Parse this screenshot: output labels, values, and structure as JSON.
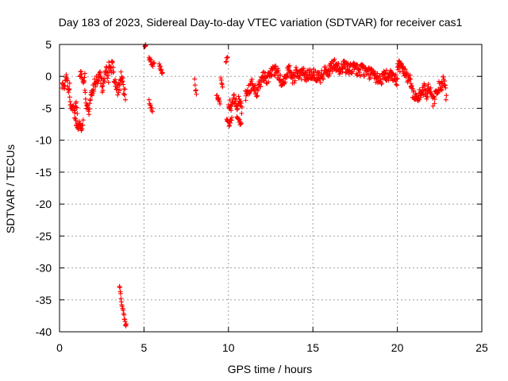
{
  "chart_data": {
    "type": "scatter",
    "title": "Day 183 of 2023, Sidereal Day-to-day VTEC variation (SDTVAR) for receiver cas1",
    "xlabel": "GPS time / hours",
    "ylabel": "SDTVAR / TECUs",
    "xlim": [
      0,
      25
    ],
    "ylim": [
      -40,
      5
    ],
    "xticks": [
      0,
      5,
      10,
      15,
      20,
      25
    ],
    "yticks": [
      5,
      0,
      -5,
      -10,
      -15,
      -20,
      -25,
      -30,
      -35,
      -40
    ],
    "grid": true,
    "marker": "+",
    "color": "#ff0000",
    "segments": [
      {
        "x0": 0.15,
        "x1": 0.6,
        "y": [
          -1.5,
          -1.0,
          -2.0,
          -0.5,
          0.0,
          -1.0,
          -2.5,
          -1.2
        ]
      },
      {
        "x0": 0.6,
        "x1": 1.05,
        "y": [
          -3.5,
          -4.8,
          -5.2,
          -4.5,
          -6.0,
          -4.0,
          -5.5
        ]
      },
      {
        "x0": 0.9,
        "x1": 1.4,
        "y": [
          -6.5,
          -7.5,
          -8.0,
          -7.2,
          -8.3,
          -7.0
        ]
      },
      {
        "x0": 1.2,
        "x1": 1.5,
        "y": [
          0.2,
          0.6,
          -0.5,
          -1.0,
          0.3
        ]
      },
      {
        "x0": 1.5,
        "x1": 1.9,
        "y": [
          -2.0,
          -5.0,
          -4.5,
          -6.0,
          -3.5,
          -2.5
        ]
      },
      {
        "x0": 1.9,
        "x1": 2.9,
        "y": [
          -2.5,
          -1.5,
          -0.5,
          -1.0,
          0.3,
          -1.8,
          -0.5,
          0.8,
          -0.2
        ]
      },
      {
        "x0": 2.9,
        "x1": 3.9,
        "y": [
          1.5,
          1.0,
          1.8,
          -0.5,
          -1.0,
          -2.5,
          -1.5,
          0.5,
          -2.0,
          -3.0
        ]
      },
      {
        "x0": 3.55,
        "x1": 3.95,
        "y": [
          -33.0,
          -34.0,
          -35.5,
          -36.5,
          -37.5,
          -38.5,
          -39.0
        ]
      },
      {
        "x0": 5.05,
        "x1": 5.1,
        "y": [
          4.8
        ]
      },
      {
        "x0": 5.3,
        "x1": 5.6,
        "y": [
          3.0,
          2.5,
          1.5,
          2.0
        ]
      },
      {
        "x0": 5.3,
        "x1": 5.5,
        "y": [
          -4.0,
          -4.5,
          -5.0,
          -5.5
        ]
      },
      {
        "x0": 5.9,
        "x1": 6.1,
        "y": [
          2.0,
          1.0,
          0.5
        ]
      },
      {
        "x0": 8.0,
        "x1": 8.1,
        "y": [
          -0.5,
          -2.0,
          -2.5
        ]
      },
      {
        "x0": 9.3,
        "x1": 9.5,
        "y": [
          -3.0,
          -3.5,
          -4.0
        ]
      },
      {
        "x0": 9.55,
        "x1": 9.65,
        "y": [
          0.0,
          -1.5
        ]
      },
      {
        "x0": 9.85,
        "x1": 9.95,
        "y": [
          2.5,
          3.2
        ]
      },
      {
        "x0": 9.9,
        "x1": 10.2,
        "y": [
          -7.0,
          -7.5,
          -6.5
        ]
      },
      {
        "x0": 10.0,
        "x1": 10.8,
        "y": [
          -4.0,
          -5.0,
          -3.5,
          -4.5,
          -3.8,
          -5.5
        ]
      },
      {
        "x0": 10.5,
        "x1": 10.75,
        "y": [
          -6.5,
          -7.5
        ]
      },
      {
        "x0": 11.0,
        "x1": 12.5,
        "y": [
          -3.0,
          -2.0,
          -1.0,
          -2.5,
          -1.5,
          0.0,
          -0.5,
          0.5
        ]
      },
      {
        "x0": 12.5,
        "x1": 14.5,
        "y": [
          0.5,
          1.0,
          0.5,
          -1.0,
          0.0,
          1.2,
          -0.5,
          0.8,
          0.2,
          0.5
        ]
      },
      {
        "x0": 14.5,
        "x1": 16.0,
        "y": [
          0.0,
          0.5,
          0.3,
          -0.3,
          0.8,
          1.0
        ]
      },
      {
        "x0": 16.0,
        "x1": 18.0,
        "y": [
          1.5,
          1.8,
          1.2,
          1.6,
          1.0,
          1.4,
          0.8,
          1.2
        ]
      },
      {
        "x0": 18.0,
        "x1": 20.0,
        "y": [
          0.8,
          0.5,
          0.0,
          -0.5,
          0.2,
          0.0,
          -0.8
        ]
      },
      {
        "x0": 20.0,
        "x1": 20.8,
        "y": [
          2.0,
          1.5,
          1.0,
          0.0,
          -0.5
        ]
      },
      {
        "x0": 20.8,
        "x1": 21.8,
        "y": [
          -2.0,
          -3.0,
          -3.5,
          -2.5,
          -2.0,
          -3.0
        ]
      },
      {
        "x0": 21.8,
        "x1": 22.9,
        "y": [
          -1.5,
          -2.5,
          -4.0,
          -3.0,
          -1.5,
          -2.0,
          -0.5,
          -3.5
        ]
      }
    ]
  }
}
